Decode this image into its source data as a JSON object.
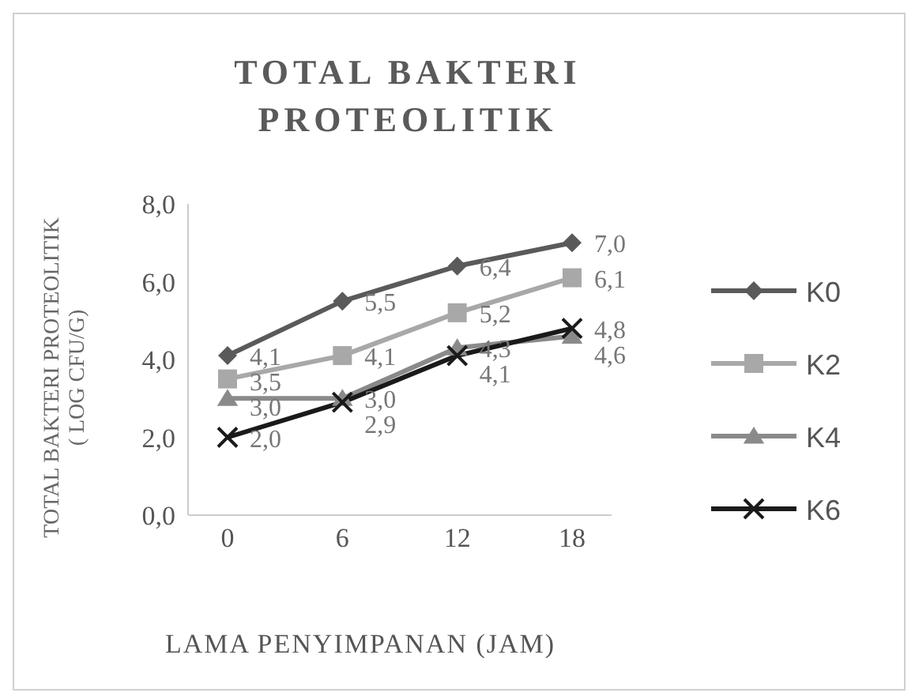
{
  "chart_data": {
    "type": "line",
    "title": "TOTAL BAKTERI\nPROTEOLITIK",
    "xlabel": "LAMA PENYIMPANAN (JAM)",
    "ylabel": "TOTAL BAKTERI PROTEOLITIK\n( LOG CFU/G)",
    "categories": [
      "0",
      "6",
      "12",
      "18"
    ],
    "series": [
      {
        "name": "K0",
        "color": "#5a5a5a",
        "marker": "diamond",
        "values": [
          4.1,
          5.5,
          6.4,
          7.0
        ],
        "value_labels": [
          "4,1",
          "5,5",
          "6,4",
          "7,0"
        ]
      },
      {
        "name": "K2",
        "color": "#a8a8a8",
        "marker": "square",
        "values": [
          3.5,
          4.1,
          5.2,
          6.1
        ],
        "value_labels": [
          "3,5",
          "4,1",
          "5,2",
          "6,1"
        ]
      },
      {
        "name": "K4",
        "color": "#8a8a8a",
        "marker": "triangle",
        "values": [
          3.0,
          3.0,
          4.3,
          4.6
        ],
        "value_labels": [
          "3,0",
          "3,0",
          "4,3",
          "4,6"
        ]
      },
      {
        "name": "K6",
        "color": "#1a1a1a",
        "marker": "cross",
        "values": [
          2.0,
          2.9,
          4.1,
          4.8
        ],
        "value_labels": [
          "2,0",
          "2,9",
          "4,1",
          "4,8"
        ]
      }
    ],
    "ylim": [
      0,
      8
    ],
    "yticks": [
      {
        "value": 0,
        "label": "0,0"
      },
      {
        "value": 2,
        "label": "2,0"
      },
      {
        "value": 4,
        "label": "4,0"
      },
      {
        "value": 6,
        "label": "6,0"
      },
      {
        "value": 8,
        "label": "8,0"
      }
    ],
    "grid": false,
    "legend": "right"
  }
}
